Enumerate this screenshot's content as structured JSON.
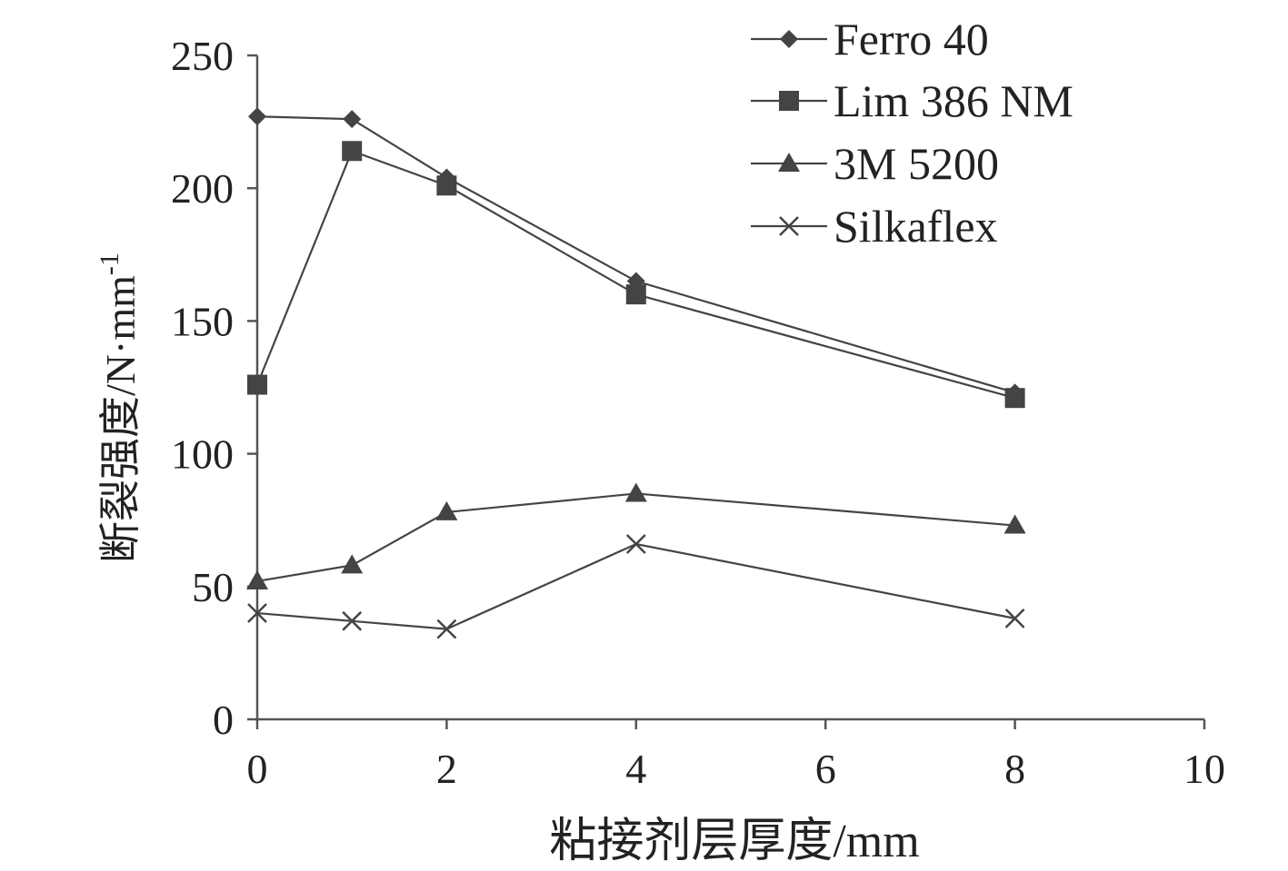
{
  "chart_data": {
    "type": "line",
    "title": "",
    "xlabel": "粘接剂层厚度/mm",
    "ylabel": "断裂强度/N·mm",
    "ylabel_superscript": "-1",
    "xlim": [
      0,
      10
    ],
    "ylim": [
      0,
      250
    ],
    "xticks": [
      0,
      2,
      4,
      6,
      8,
      10
    ],
    "yticks": [
      0,
      50,
      100,
      150,
      200,
      250
    ],
    "grid": false,
    "legend_position": "top-right",
    "line_color": "#444444",
    "series": [
      {
        "name": "Ferro 40",
        "marker": "diamond",
        "x": [
          0,
          1,
          2,
          4,
          8
        ],
        "y": [
          227,
          226,
          204,
          165,
          123
        ]
      },
      {
        "name": "Lim 386 NM",
        "marker": "square",
        "x": [
          0,
          1,
          2,
          4,
          8
        ],
        "y": [
          126,
          214,
          201,
          160,
          121
        ]
      },
      {
        "name": "3M 5200",
        "marker": "triangle",
        "x": [
          0,
          1,
          2,
          4,
          8
        ],
        "y": [
          52,
          58,
          78,
          85,
          73
        ]
      },
      {
        "name": "Silkaflex",
        "marker": "cross",
        "x": [
          0,
          1,
          2,
          4,
          8
        ],
        "y": [
          40,
          37,
          34,
          66,
          38
        ]
      }
    ]
  }
}
